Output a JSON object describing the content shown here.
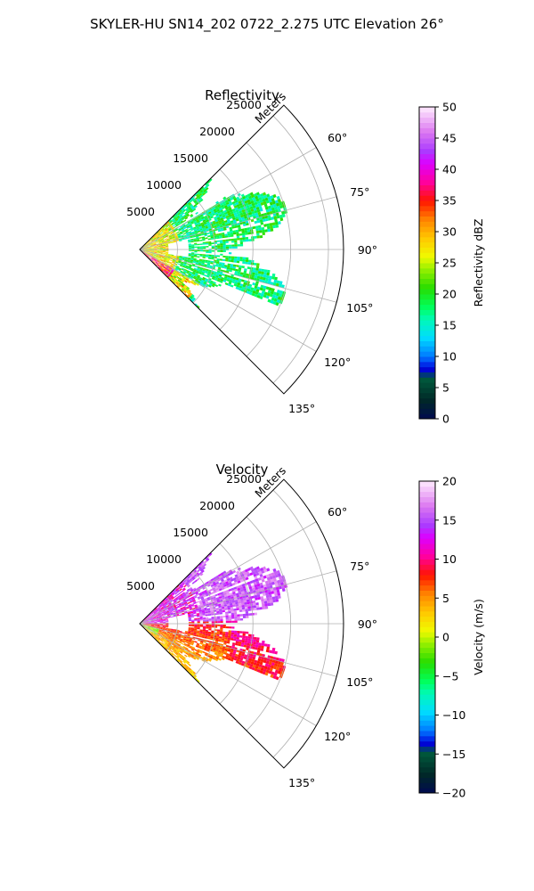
{
  "figure": {
    "suptitle": "SKYLER-HU  SN14_202  0722_2.275 UTC Elevation 26°"
  },
  "chart_data": [
    {
      "type": "heatmap",
      "projection": "polar-sector",
      "title": "Reflectivity",
      "radial_label": "Meters",
      "radial_ticks": [
        5000,
        10000,
        15000,
        20000,
        25000
      ],
      "radial_tick_labels": [
        "5000",
        "10000",
        "15000",
        "20000",
        "25000"
      ],
      "rmax": 27000,
      "azimuth_range_deg": [
        45,
        135
      ],
      "azimuth_ticks": [
        60,
        75,
        90,
        105,
        120,
        135
      ],
      "azimuth_tick_labels": [
        "60°",
        "75°",
        "90°",
        "105°",
        "120°",
        "135°"
      ],
      "grid": true,
      "colorbar": {
        "label": "Reflectivity dBZ",
        "range": [
          0,
          50
        ],
        "ticks": [
          "0",
          "5",
          "10",
          "15",
          "20",
          "25",
          "30",
          "35",
          "40",
          "45",
          "50"
        ]
      },
      "field_summary": {
        "coverage_range_m": [
          0,
          20000
        ],
        "typical_value_range": [
          12,
          22
        ],
        "near_radar_max": 32
      }
    },
    {
      "type": "heatmap",
      "projection": "polar-sector",
      "title": "Velocity",
      "radial_label": "Meters",
      "radial_ticks": [
        5000,
        10000,
        15000,
        20000,
        25000
      ],
      "radial_tick_labels": [
        "5000",
        "10000",
        "15000",
        "20000",
        "25000"
      ],
      "rmax": 27000,
      "azimuth_range_deg": [
        45,
        135
      ],
      "azimuth_ticks": [
        60,
        75,
        90,
        105,
        120,
        135
      ],
      "azimuth_tick_labels": [
        "60°",
        "75°",
        "90°",
        "105°",
        "120°",
        "135°"
      ],
      "grid": true,
      "colorbar": {
        "label": "Velocity (m/s)",
        "range": [
          -20,
          20
        ],
        "ticks": [
          "−20",
          "−15",
          "−10",
          "−5",
          "0",
          "5",
          "10",
          "15",
          "20"
        ]
      },
      "field_summary": {
        "coverage_range_m": [
          0,
          20000
        ],
        "north_sector_typical": 15,
        "south_sector_typical": 8,
        "near_edge_min": -5
      }
    }
  ]
}
